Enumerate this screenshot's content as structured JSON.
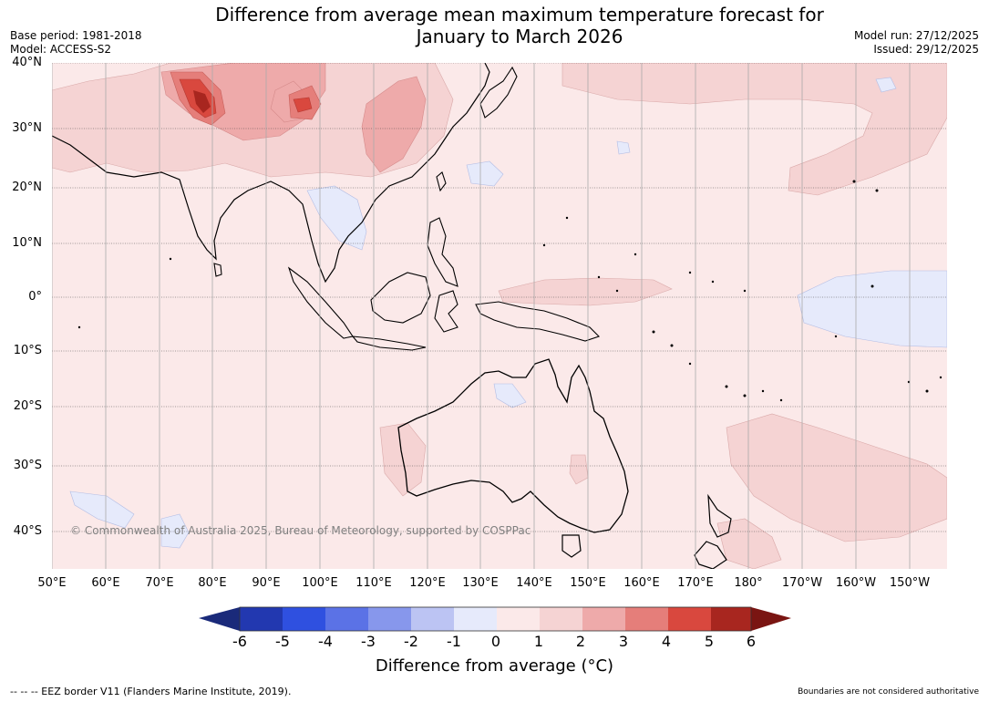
{
  "header": {
    "title_line1": "Difference from average mean maximum temperature forecast for",
    "title_line2": "January to March 2026",
    "base_period": "Base period: 1981-2018",
    "model": "Model: ACCESS-S2",
    "model_run": "Model run: 27/12/2025",
    "issued": "Issued: 29/12/2025"
  },
  "map": {
    "region": "Asia-Pacific / Australia",
    "lat_labels": [
      "40°N",
      "30°N",
      "20°N",
      "10°N",
      "0°",
      "10°S",
      "20°S",
      "30°S",
      "40°S"
    ],
    "lat_values": [
      40,
      30,
      20,
      10,
      0,
      -10,
      -20,
      -30,
      -40
    ],
    "lon_labels": [
      "50°E",
      "60°E",
      "70°E",
      "80°E",
      "90°E",
      "100°E",
      "110°E",
      "120°E",
      "130°E",
      "140°E",
      "150°E",
      "160°E",
      "170°E",
      "180°",
      "170°W",
      "160°W",
      "150°W"
    ],
    "lon_values": [
      50,
      60,
      70,
      80,
      90,
      100,
      110,
      120,
      130,
      140,
      150,
      160,
      170,
      180,
      190,
      200,
      210
    ],
    "copyright": "© Commonwealth of Australia 2025, Bureau of Meteorology, supported by COSPPac"
  },
  "legend": {
    "ticks": [
      "-6",
      "-5",
      "-4",
      "-3",
      "-2",
      "-1",
      "0",
      "1",
      "2",
      "3",
      "4",
      "5",
      "6"
    ],
    "colors": [
      "#1a2a7a",
      "#2238b0",
      "#2f50e0",
      "#5b72e6",
      "#8797ec",
      "#bcc4f3",
      "#e6eafb",
      "#fbe9e9",
      "#f5d3d3",
      "#eeaaaa",
      "#e57e7a",
      "#d9483e",
      "#a8261f",
      "#7a1512"
    ],
    "label": "Difference from average (°C)"
  },
  "footer": {
    "eez": "-- -- -- EEZ border V11 (Flanders Marine Institute, 2019).",
    "boundaries": "Boundaries are not considered authoritative"
  }
}
